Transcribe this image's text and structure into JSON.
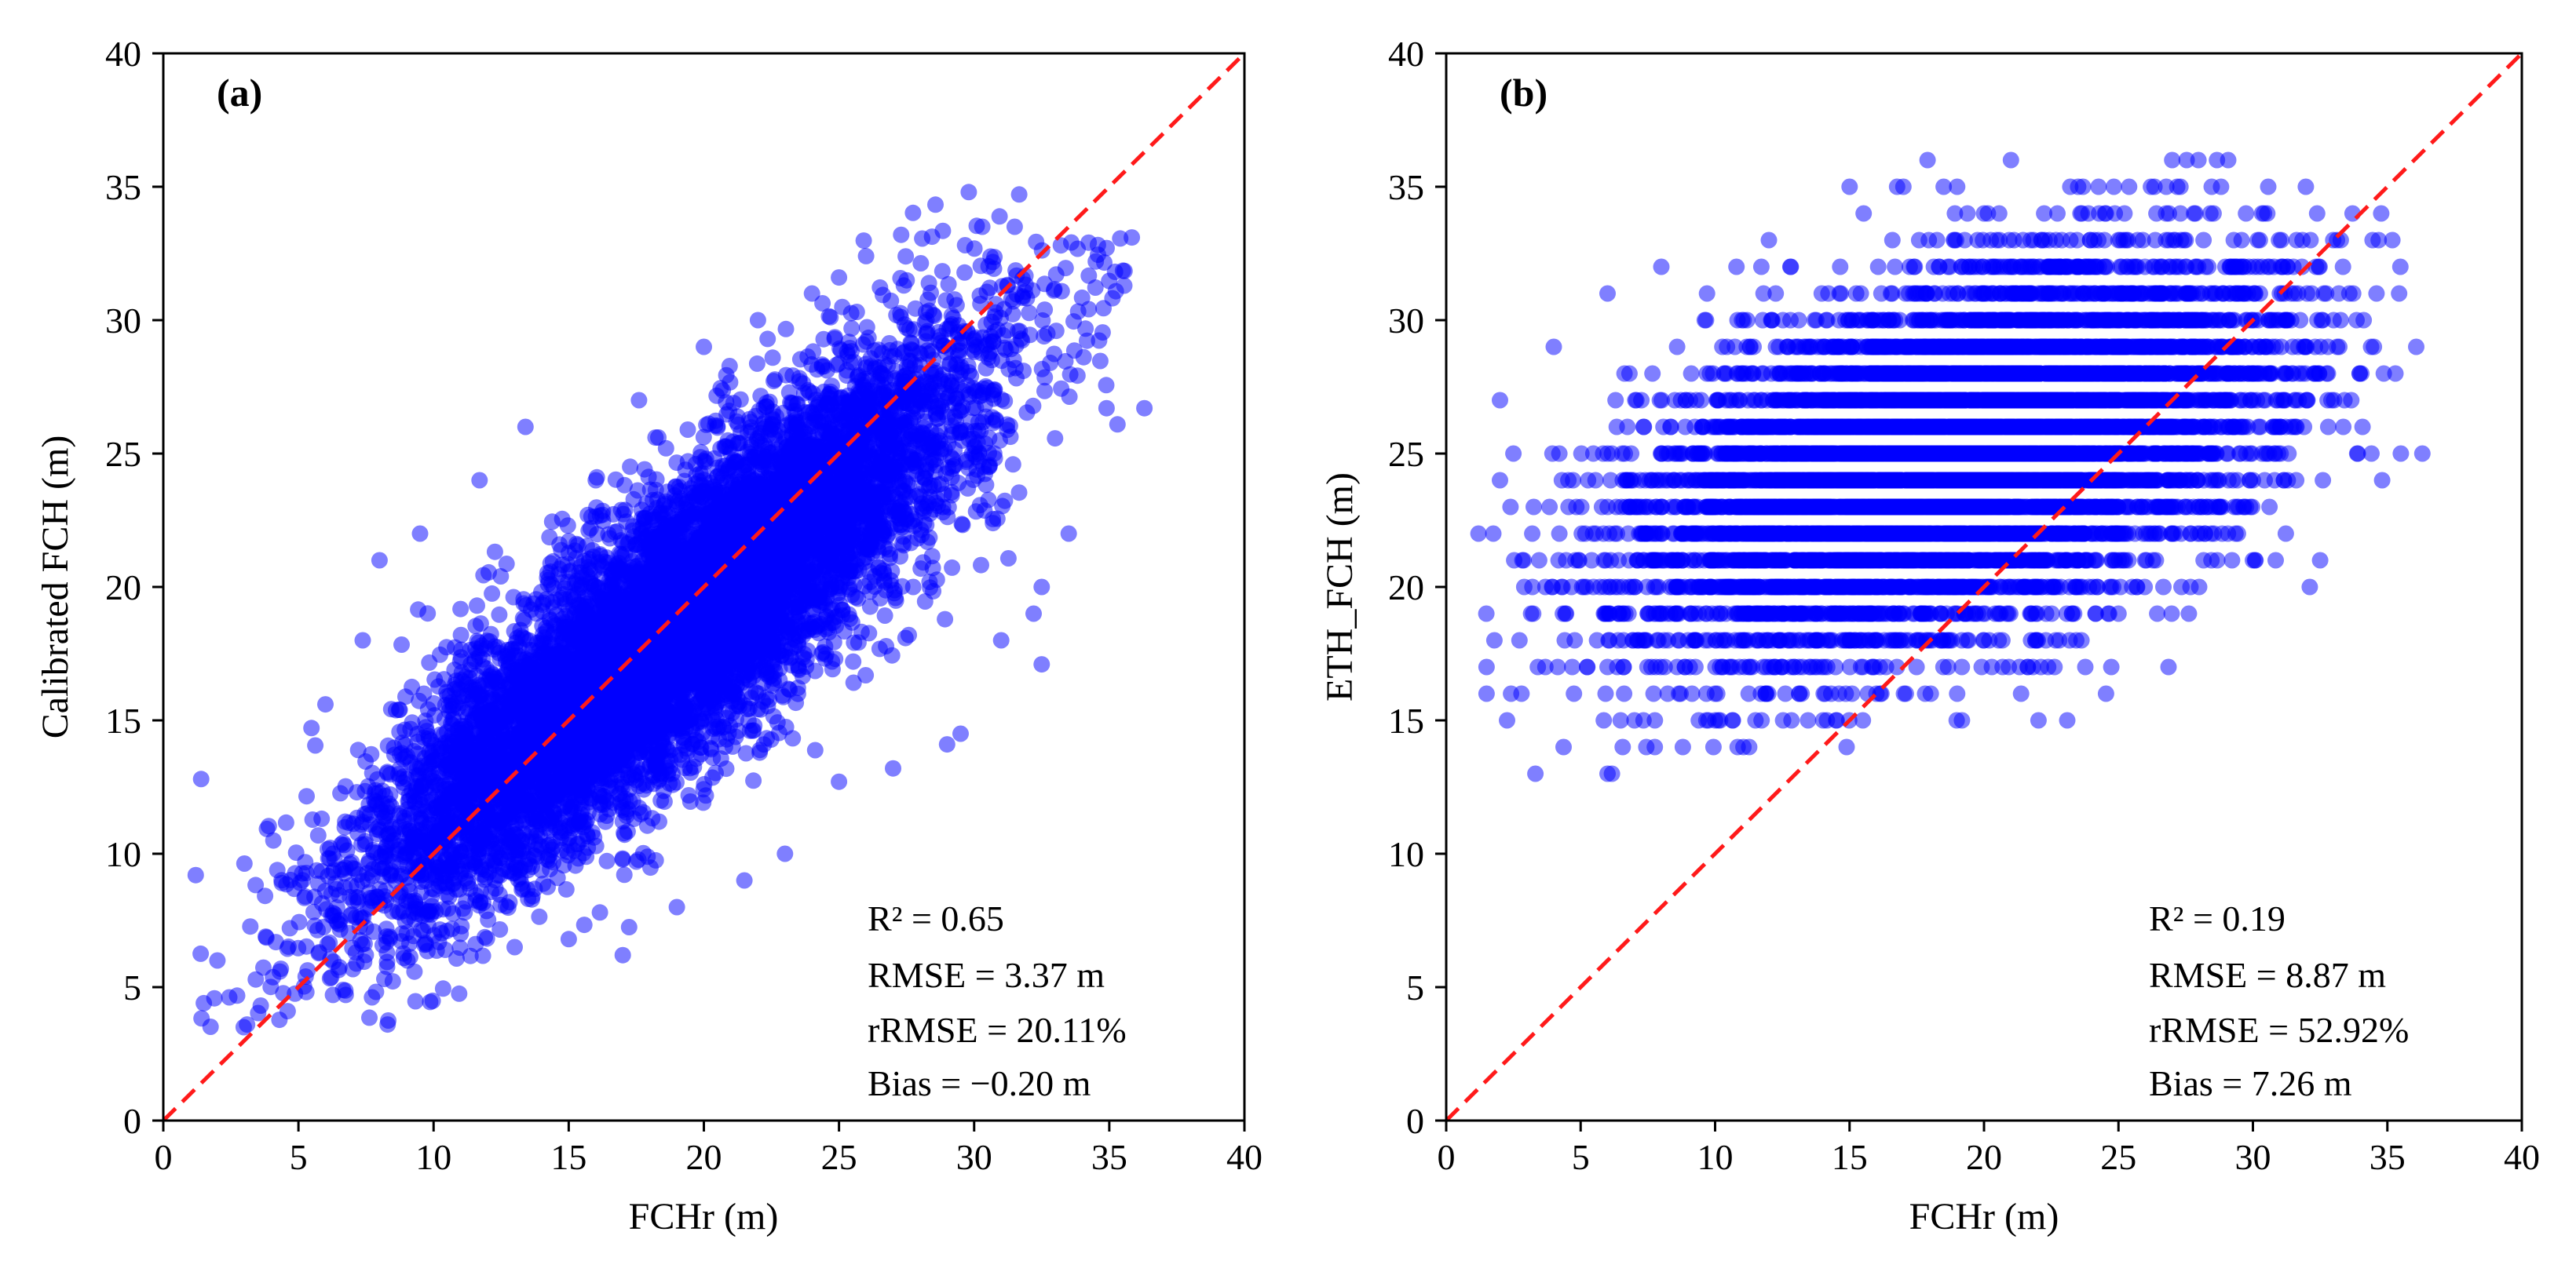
{
  "colors": {
    "points": "#0000ff",
    "reference_line": "#ff1a1a",
    "axes": "#000000",
    "background": "#ffffff"
  },
  "chart_data": [
    {
      "id": "a",
      "type": "scatter",
      "panel_label": "(a)",
      "xlabel": "FCHr (m)",
      "ylabel": "Calibrated FCH (m)",
      "xlim": [
        0,
        40
      ],
      "ylim": [
        0,
        40
      ],
      "xticks": [
        0,
        5,
        10,
        15,
        20,
        25,
        30,
        35,
        40
      ],
      "yticks": [
        0,
        5,
        10,
        15,
        20,
        25,
        30,
        35,
        40
      ],
      "reference_line": {
        "style": "dashed",
        "from": [
          0,
          0
        ],
        "to": [
          40,
          40
        ],
        "label": "1:1 line"
      },
      "stats": [
        "R² = 0.65",
        "RMSE = 3.37 m",
        "rRMSE = 20.11%",
        "Bias = −0.20 m"
      ],
      "point_cloud": {
        "n_points": 9000,
        "x_range": [
          1.2,
          36.4
        ],
        "y_range": [
          3.5,
          34.8
        ],
        "y_fit": {
          "intercept": 3.4,
          "slope": 0.8
        },
        "y_noise_sd": 2.6,
        "integer_y": false,
        "seed": 11
      },
      "points": [
        [
          1.2,
          9.2
        ],
        [
          1.4,
          12.8
        ],
        [
          1.5,
          4.4
        ],
        [
          2.0,
          6.0
        ],
        [
          3.1,
          3.6
        ],
        [
          4.6,
          4.1
        ],
        [
          8.3,
          3.6
        ],
        [
          6.0,
          15.6
        ],
        [
          8.0,
          21.0
        ],
        [
          9.5,
          22.0
        ],
        [
          11.7,
          24.0
        ],
        [
          13.4,
          26.0
        ],
        [
          16.0,
          24.0
        ],
        [
          17.6,
          27.0
        ],
        [
          20.0,
          29.0
        ],
        [
          22.0,
          30.0
        ],
        [
          24.0,
          31.0
        ],
        [
          25.0,
          31.6
        ],
        [
          26.0,
          32.4
        ],
        [
          27.3,
          33.2
        ],
        [
          29.8,
          34.8
        ],
        [
          30.3,
          33.5
        ],
        [
          31.5,
          33.5
        ],
        [
          34.5,
          32.2
        ],
        [
          34.9,
          26.7
        ],
        [
          36.3,
          26.7
        ],
        [
          33.5,
          22.0
        ],
        [
          32.5,
          20.0
        ],
        [
          32.2,
          19.0
        ],
        [
          32.5,
          17.1
        ],
        [
          31.0,
          18.0
        ],
        [
          29.5,
          14.5
        ],
        [
          29.0,
          14.1
        ],
        [
          27.0,
          13.2
        ],
        [
          25.0,
          12.7
        ],
        [
          23.0,
          10.0
        ],
        [
          21.5,
          9.0
        ],
        [
          19.0,
          8.0
        ],
        [
          17.0,
          6.2
        ],
        [
          15.0,
          6.8
        ],
        [
          13.0,
          6.5
        ],
        [
          11.0,
          7.0
        ]
      ]
    },
    {
      "id": "b",
      "type": "scatter",
      "panel_label": "(b)",
      "xlabel": "FCHr (m)",
      "ylabel": "ETH_FCH (m)",
      "xlim": [
        0,
        40
      ],
      "ylim": [
        0,
        40
      ],
      "xticks": [
        0,
        5,
        10,
        15,
        20,
        25,
        30,
        35,
        40
      ],
      "yticks": [
        0,
        5,
        10,
        15,
        20,
        25,
        30,
        35,
        40
      ],
      "reference_line": {
        "style": "dashed",
        "from": [
          0,
          0
        ],
        "to": [
          40,
          40
        ],
        "label": "1:1 line"
      },
      "stats": [
        "R² = 0.19",
        "RMSE = 8.87 m",
        "rRMSE = 52.92%",
        "Bias = 7.26 m"
      ],
      "point_cloud": {
        "n_points": 9000,
        "x_range": [
          1.2,
          36.4
        ],
        "y_range": [
          13,
          36
        ],
        "y_fit": {
          "intercept": 19.2,
          "slope": 0.3
        },
        "y_noise_sd": 3.0,
        "integer_y": true,
        "seed": 23
      },
      "points": [
        [
          1.2,
          22
        ],
        [
          1.5,
          17
        ],
        [
          1.5,
          16
        ],
        [
          2.0,
          24
        ],
        [
          2.0,
          27
        ],
        [
          2.5,
          25
        ],
        [
          2.8,
          16
        ],
        [
          4.0,
          29
        ],
        [
          6.0,
          13
        ],
        [
          6.0,
          31
        ],
        [
          8.0,
          32
        ],
        [
          8.8,
          14
        ],
        [
          9.7,
          31
        ],
        [
          11.5,
          15
        ],
        [
          12.0,
          33
        ],
        [
          14.5,
          15
        ],
        [
          15.0,
          35
        ],
        [
          17.0,
          35
        ],
        [
          17.9,
          36
        ],
        [
          18.5,
          35
        ],
        [
          19.0,
          35
        ],
        [
          20.0,
          34
        ],
        [
          21.0,
          36
        ],
        [
          23.5,
          35
        ],
        [
          27.5,
          33
        ],
        [
          31.0,
          31
        ],
        [
          32.5,
          21
        ],
        [
          33.0,
          30
        ],
        [
          34.5,
          29
        ],
        [
          35.3,
          28
        ],
        [
          35.5,
          25
        ],
        [
          36.3,
          25
        ],
        [
          30.0,
          21
        ],
        [
          28.0,
          20
        ],
        [
          25.0,
          19
        ],
        [
          22.0,
          18
        ],
        [
          19.0,
          16
        ],
        [
          16.0,
          16
        ],
        [
          10.0,
          15
        ],
        [
          7.0,
          15
        ]
      ]
    }
  ]
}
